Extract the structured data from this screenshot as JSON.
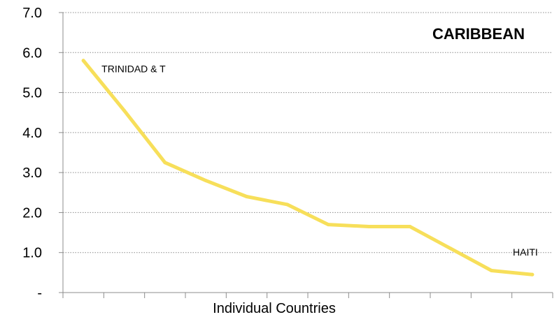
{
  "chart_data": {
    "type": "line",
    "title": "CARIBBEAN",
    "xlabel": "Individual Countries",
    "ylabel": "",
    "ylim": [
      0,
      7
    ],
    "yticks": [
      {
        "value": 0,
        "label": "-"
      },
      {
        "value": 1,
        "label": "1.0"
      },
      {
        "value": 2,
        "label": "2.0"
      },
      {
        "value": 3,
        "label": "3.0"
      },
      {
        "value": 4,
        "label": "4.0"
      },
      {
        "value": 5,
        "label": "5.0"
      },
      {
        "value": 6,
        "label": "6.0"
      },
      {
        "value": 7,
        "label": "7.0"
      }
    ],
    "grid": true,
    "series_color": "#f7df5a",
    "values": [
      5.8,
      4.55,
      3.25,
      2.8,
      2.4,
      2.2,
      1.7,
      1.65,
      1.65,
      1.1,
      0.55,
      0.45
    ],
    "annotations": [
      {
        "text": "TRINIDAD & T",
        "point_index": 0
      },
      {
        "text": "HAITI",
        "point_index": 11
      }
    ]
  }
}
